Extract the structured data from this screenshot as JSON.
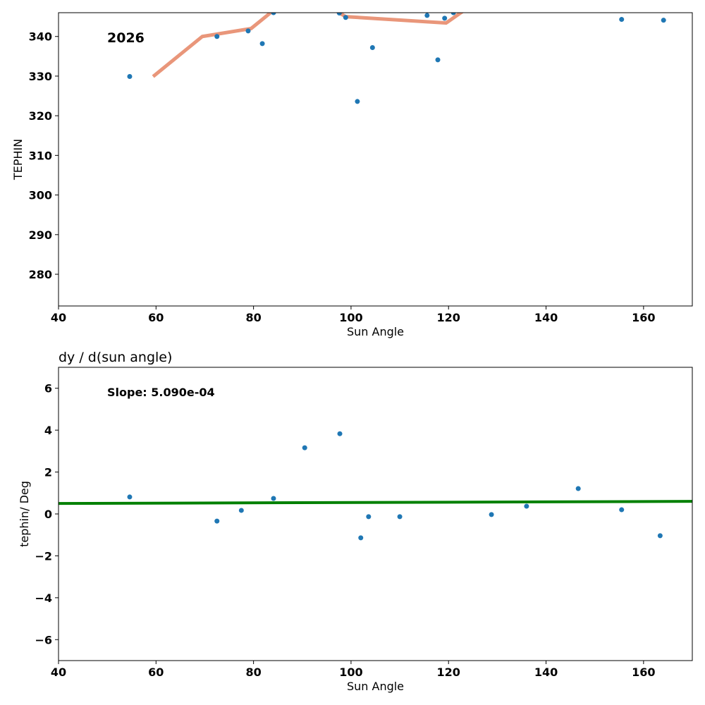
{
  "chart_data": [
    {
      "type": "scatter",
      "title": "",
      "annotation": "2026",
      "xlabel": "Sun Angle",
      "ylabel": "TEPHIN",
      "xlim": [
        40,
        170
      ],
      "ylim": [
        272,
        346
      ],
      "xticks": [
        40,
        60,
        80,
        100,
        120,
        140,
        160
      ],
      "yticks": [
        280,
        290,
        300,
        310,
        320,
        330,
        340
      ],
      "points": [
        [
          54.6,
          329.9
        ],
        [
          72.5,
          340.0
        ],
        [
          78.9,
          341.4
        ],
        [
          81.8,
          338.2
        ],
        [
          84.1,
          346.0
        ],
        [
          97.6,
          345.9
        ],
        [
          98.9,
          344.8
        ],
        [
          101.3,
          323.6
        ],
        [
          104.4,
          337.2
        ],
        [
          115.6,
          345.3
        ],
        [
          117.8,
          334.1
        ],
        [
          119.2,
          344.6
        ],
        [
          121.0,
          346.0
        ],
        [
          155.5,
          344.3
        ],
        [
          164.1,
          344.1
        ]
      ],
      "line": [
        [
          59.4,
          329.9
        ],
        [
          69.5,
          340.0
        ],
        [
          79.5,
          342.0
        ],
        [
          89.5,
          352
        ],
        [
          98.9,
          345.0
        ],
        [
          119.5,
          343.4
        ],
        [
          129.5,
          352
        ]
      ],
      "colors": {
        "points": "#1f77b4",
        "line": "#e9967a"
      }
    },
    {
      "type": "scatter",
      "title": "dy / d(sun angle)",
      "annotation": "Slope: 5.090e-04",
      "xlabel": "Sun Angle",
      "ylabel": "tephin/ Deg",
      "xlim": [
        40,
        170
      ],
      "ylim": [
        -7,
        7
      ],
      "xticks": [
        40,
        60,
        80,
        100,
        120,
        140,
        160
      ],
      "yticks": [
        -6,
        -4,
        -2,
        0,
        2,
        4,
        6
      ],
      "points": [
        [
          54.6,
          0.81
        ],
        [
          72.5,
          -0.34
        ],
        [
          77.5,
          0.17
        ],
        [
          84.1,
          0.74
        ],
        [
          90.5,
          3.16
        ],
        [
          97.7,
          3.83
        ],
        [
          102.0,
          -1.14
        ],
        [
          103.6,
          -0.13
        ],
        [
          110.0,
          -0.13
        ],
        [
          128.8,
          -0.03
        ],
        [
          136.0,
          0.37
        ],
        [
          146.6,
          1.21
        ],
        [
          155.5,
          0.2
        ],
        [
          163.4,
          -1.04
        ]
      ],
      "line": [
        [
          40,
          0.5
        ],
        [
          170,
          0.6
        ]
      ],
      "colors": {
        "points": "#1f77b4",
        "line": "#008000"
      }
    }
  ]
}
